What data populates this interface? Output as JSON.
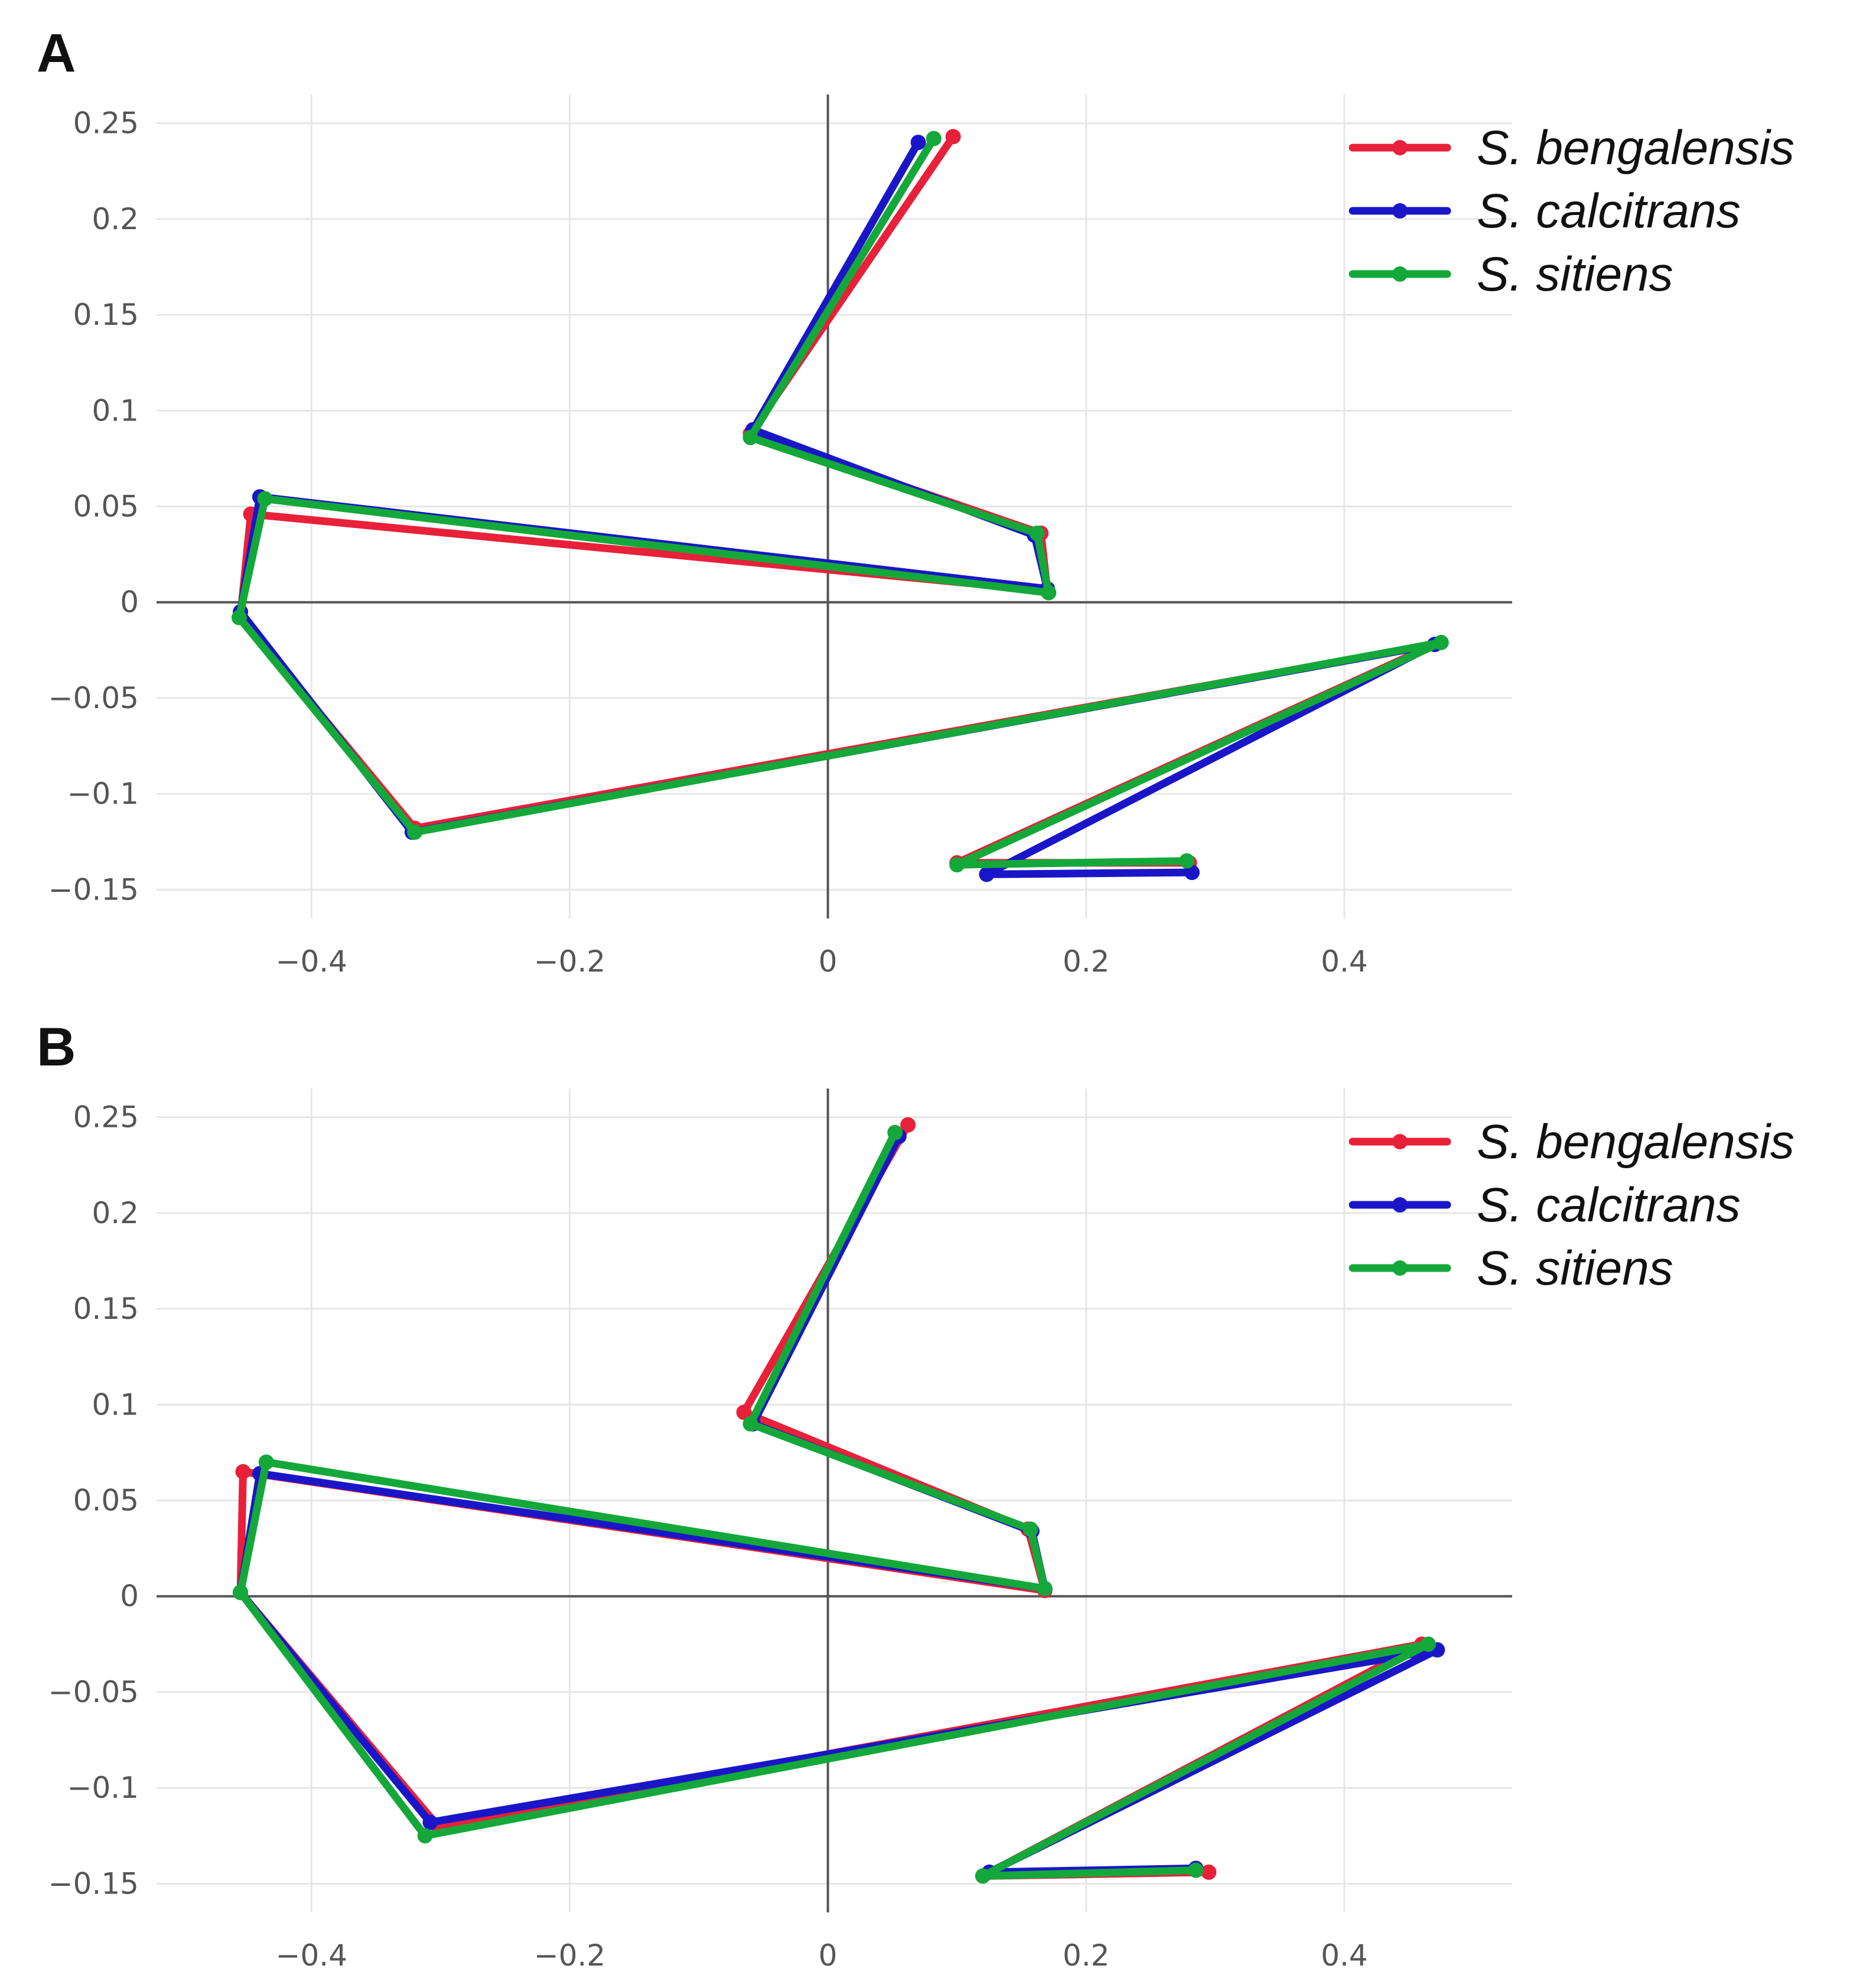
{
  "colors": {
    "S. bengalensis": "#e8203a",
    "S. calcitrans": "#1a16c8",
    "S. sitiens": "#14a83a",
    "grid": "#e6e6e6",
    "axis_zero": "#555555"
  },
  "chart_data": [
    {
      "panel_label": "A",
      "type": "line",
      "xlim": [
        -0.52,
        0.53
      ],
      "ylim": [
        -0.165,
        0.265
      ],
      "xticks": [
        -0.4,
        -0.2,
        0,
        0.2,
        0.4
      ],
      "xtick_labels": [
        "−0.4",
        "−0.2",
        "0",
        "0.2",
        "0.4"
      ],
      "yticks": [
        0.25,
        0.2,
        0.15,
        0.1,
        0.05,
        0,
        -0.05,
        -0.1,
        -0.15
      ],
      "ytick_labels": [
        "0.25",
        "0.2",
        "0.15",
        "0.1",
        "0.05",
        "0",
        "−0.05",
        "−0.1",
        "−0.15"
      ],
      "grid": true,
      "legend": "top-right",
      "series": [
        {
          "name": "S. bengalensis",
          "x": [
            0.097,
            -0.06,
            0.165,
            0.17,
            -0.447,
            -0.455,
            -0.32,
            0.47,
            0.1,
            0.28
          ],
          "y": [
            0.243,
            0.088,
            0.036,
            0.006,
            0.046,
            -0.008,
            -0.118,
            -0.022,
            -0.136,
            -0.136
          ]
        },
        {
          "name": "S. calcitrans",
          "x": [
            0.07,
            -0.058,
            0.16,
            0.17,
            -0.44,
            -0.455,
            -0.322,
            0.47,
            0.123,
            0.282
          ],
          "y": [
            0.24,
            0.09,
            0.035,
            0.007,
            0.055,
            -0.005,
            -0.12,
            -0.022,
            -0.142,
            -0.141
          ]
        },
        {
          "name": "S. sitiens",
          "x": [
            0.082,
            -0.06,
            0.162,
            0.171,
            -0.436,
            -0.456,
            -0.32,
            0.475,
            0.1,
            0.278
          ],
          "y": [
            0.242,
            0.086,
            0.036,
            0.005,
            0.054,
            -0.008,
            -0.12,
            -0.021,
            -0.137,
            -0.135
          ]
        }
      ]
    },
    {
      "panel_label": "B",
      "type": "line",
      "xlim": [
        -0.52,
        0.53
      ],
      "ylim": [
        -0.165,
        0.265
      ],
      "xticks": [
        -0.4,
        -0.2,
        0,
        0.2,
        0.4
      ],
      "xtick_labels": [
        "−0.4",
        "−0.2",
        "0",
        "0.2",
        "0.4"
      ],
      "yticks": [
        0.25,
        0.2,
        0.15,
        0.1,
        0.05,
        0,
        -0.05,
        -0.1,
        -0.15
      ],
      "ytick_labels": [
        "0.25",
        "0.2",
        "0.15",
        "0.1",
        "0.05",
        "0",
        "−0.05",
        "−0.1",
        "−0.15"
      ],
      "grid": true,
      "legend": "top-right",
      "series": [
        {
          "name": "S. bengalensis",
          "x": [
            0.062,
            -0.065,
            0.155,
            0.168,
            -0.453,
            -0.455,
            -0.302,
            0.46,
            0.12,
            0.295
          ],
          "y": [
            0.246,
            0.096,
            0.035,
            0.003,
            0.065,
            0.002,
            -0.12,
            -0.025,
            -0.146,
            -0.144
          ]
        },
        {
          "name": "S. calcitrans",
          "x": [
            0.055,
            -0.058,
            0.158,
            0.168,
            -0.44,
            -0.455,
            -0.308,
            0.472,
            0.125,
            0.285
          ],
          "y": [
            0.24,
            0.09,
            0.034,
            0.004,
            0.064,
            0.002,
            -0.118,
            -0.028,
            -0.144,
            -0.142
          ]
        },
        {
          "name": "S. sitiens",
          "x": [
            0.052,
            -0.06,
            0.157,
            0.168,
            -0.435,
            -0.455,
            -0.312,
            0.465,
            0.12,
            0.285
          ],
          "y": [
            0.242,
            0.09,
            0.035,
            0.004,
            0.07,
            0.002,
            -0.125,
            -0.025,
            -0.146,
            -0.143
          ]
        }
      ]
    }
  ]
}
